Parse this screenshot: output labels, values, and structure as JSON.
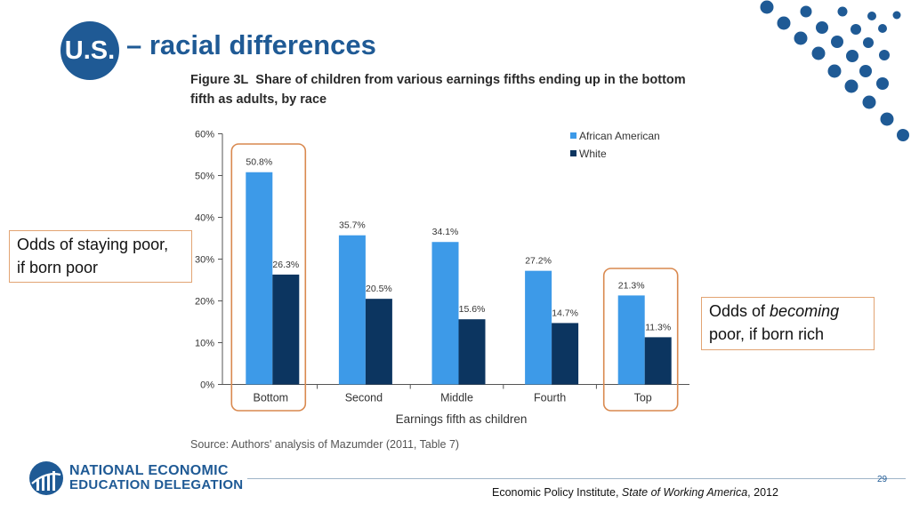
{
  "header": {
    "badge": "U.S.",
    "title": "– racial differences"
  },
  "figure": {
    "number": "Figure 3L",
    "caption": "Share of children from various earnings fifths ending up in the bottom fifth as adults, by race"
  },
  "chart_data": {
    "type": "bar",
    "categories": [
      "Bottom",
      "Second",
      "Middle",
      "Fourth",
      "Top"
    ],
    "series": [
      {
        "name": "African American",
        "values": [
          50.8,
          35.7,
          34.1,
          27.2,
          21.3
        ],
        "labels": [
          "50.8%",
          "35.7%",
          "34.1%",
          "27.2%",
          "21.3%"
        ],
        "color": "#3d9ae8"
      },
      {
        "name": "White",
        "values": [
          26.3,
          20.5,
          15.6,
          14.7,
          11.3
        ],
        "labels": [
          "26.3%",
          "20.5%",
          "15.6%",
          "14.7%",
          "11.3%"
        ],
        "color": "#0c3560"
      }
    ],
    "xlabel": "Earnings fifth as children",
    "ylabel": "",
    "ylim": [
      0,
      60
    ],
    "yticks": [
      0,
      10,
      20,
      30,
      40,
      50,
      60
    ],
    "ytick_labels": [
      "0%",
      "10%",
      "20%",
      "30%",
      "40%",
      "50%",
      "60%"
    ],
    "legend": "top-right",
    "grid": false,
    "highlighted_categories": [
      "Bottom",
      "Top"
    ],
    "highlight_color": "#d9894f"
  },
  "callouts": {
    "left": {
      "line1": "Odds of staying poor,",
      "line2": "if born poor"
    },
    "right": {
      "pre": "Odds of ",
      "emph": "becoming",
      "post": "poor, if born rich"
    }
  },
  "source": "Source: Authors' analysis of Mazumder (2011, Table 7)",
  "footer": {
    "logo_line1": "NATIONAL ECONOMIC",
    "logo_line2": "EDUCATION DELEGATION",
    "page_number": "29",
    "citation_pre": "Economic Policy Institute, ",
    "citation_emph": "State of Working America",
    "citation_post": ", 2012"
  },
  "colors": {
    "brand_blue": "#1f5a95"
  }
}
